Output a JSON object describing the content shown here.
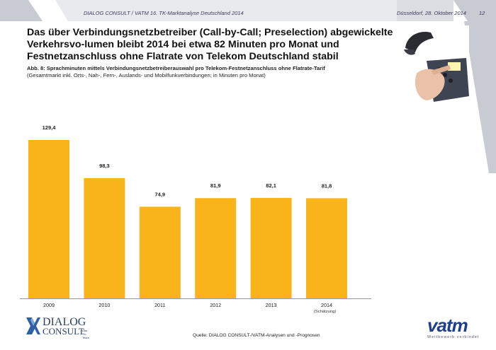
{
  "header": {
    "left_text": "DIALOG CONSULT / VATM 16. TK-Marktanalyse Deutschland 2014",
    "date": "Düsseldorf, 28. Oktober 2014",
    "page_number": "12"
  },
  "title": "Das über Verbindungsnetzbetreiber (Call-by-Call; Preselection) abgewickelte Verkehrsvo-lumen bleibt 2014 bei etwa 82 Minuten pro Monat und Festnetzanschluss ohne Flatrate von Telekom Deutschland stabil",
  "figure": {
    "label": "Abb. 8: Sprachminuten mittels Verbindungsnetzbetreiberauswahl pro Telekom-Festnetzanschluss ohne Flatrate-Tarif",
    "sublabel": "(Gesamtmarkt inkl. Orts-, Nah-, Fern-, Auslands- und Mobilfunkverbindungen; in Minuten pro Monat)"
  },
  "chart_data": {
    "type": "bar",
    "categories": [
      "2009",
      "2010",
      "2011",
      "2012",
      "2013",
      "2014"
    ],
    "values": [
      129.4,
      98.3,
      74.9,
      81.9,
      82.1,
      81.8
    ],
    "value_labels": [
      "129,4",
      "98,3",
      "74,9",
      "81,9",
      "82,1",
      "81,8"
    ],
    "ylim": [
      0,
      160
    ],
    "grid": false,
    "bar_color": "#f8b419",
    "category_note": "(Schätzung)"
  },
  "footer": {
    "source": "Quelle: DIALOG CONSULT-/VATM-Analysen und -Prognosen",
    "logo_left_line1": "DIALOG",
    "logo_left_line2": "CONSULT",
    "logo_left_small": "Das TK-Team",
    "logo_right": "vatm",
    "logo_right_tagline": "Wettbewerb verbindet"
  },
  "colors": {
    "accent_gray": "#c9cbd3",
    "accent_blue": "#1a3a8a",
    "bar": "#f8b419"
  }
}
